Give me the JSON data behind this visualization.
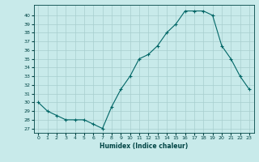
{
  "x": [
    0,
    1,
    2,
    3,
    4,
    5,
    6,
    7,
    8,
    9,
    10,
    11,
    12,
    13,
    14,
    15,
    16,
    17,
    18,
    19,
    20,
    21,
    22,
    23
  ],
  "y": [
    30,
    29,
    28.5,
    28,
    28,
    28,
    27.5,
    27,
    29.5,
    31.5,
    33,
    35,
    35.5,
    36.5,
    38,
    39,
    40.5,
    40.5,
    40.5,
    40,
    36.5,
    35,
    33,
    31.5
  ],
  "line_color": "#006666",
  "marker": "+",
  "bg_color": "#c8eaea",
  "grid_color": "#a8cece",
  "tick_color": "#004444",
  "xlabel": "Humidex (Indice chaleur)",
  "ylabel_ticks": [
    27,
    28,
    29,
    30,
    31,
    32,
    33,
    34,
    35,
    36,
    37,
    38,
    39,
    40
  ],
  "ylim": [
    26.5,
    41.2
  ],
  "xlim": [
    -0.5,
    23.5
  ],
  "font_color": "#004444",
  "xlabel_fontsize": 5.5,
  "tick_fontsize": 4.5,
  "marker_size": 2.5,
  "line_width": 0.8
}
